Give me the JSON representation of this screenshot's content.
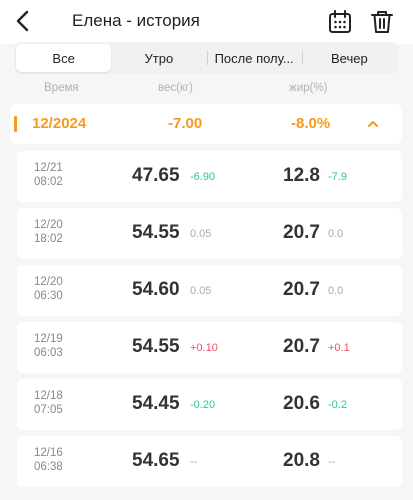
{
  "header": {
    "title": "Елена - история",
    "back_icon": "chevron-left-icon",
    "calendar_icon": "calendar-icon",
    "trash_icon": "trash-icon"
  },
  "tabs": [
    {
      "label": "Все",
      "active": true
    },
    {
      "label": "Утро",
      "active": false
    },
    {
      "label": "После полу...",
      "active": false
    },
    {
      "label": "Вечер",
      "active": false
    }
  ],
  "columns": {
    "time": "Время",
    "weight": "вес(кг)",
    "fat": "жир(%)"
  },
  "summary": {
    "month": "12/2024",
    "weight_change": "-7.00",
    "fat_change": "-8.0%",
    "accent_color": "#f39a1e",
    "toggle_icon": "chevron-up-icon"
  },
  "records": [
    {
      "date": "12/21",
      "time": "08:02",
      "weight": "47.65",
      "weight_delta": "-6.90",
      "weight_delta_tone": "green",
      "fat": "12.8",
      "fat_delta": "-7.9",
      "fat_delta_tone": "green"
    },
    {
      "date": "12/20",
      "time": "18:02",
      "weight": "54.55",
      "weight_delta": "0.05",
      "weight_delta_tone": "gray",
      "fat": "20.7",
      "fat_delta": "0.0",
      "fat_delta_tone": "gray"
    },
    {
      "date": "12/20",
      "time": "06:30",
      "weight": "54.60",
      "weight_delta": "0.05",
      "weight_delta_tone": "gray",
      "fat": "20.7",
      "fat_delta": "0.0",
      "fat_delta_tone": "gray"
    },
    {
      "date": "12/19",
      "time": "06:03",
      "weight": "54.55",
      "weight_delta": "+0.10",
      "weight_delta_tone": "red",
      "fat": "20.7",
      "fat_delta": "+0.1",
      "fat_delta_tone": "red"
    },
    {
      "date": "12/18",
      "time": "07:05",
      "weight": "54.45",
      "weight_delta": "-0.20",
      "weight_delta_tone": "green",
      "fat": "20.6",
      "fat_delta": "-0.2",
      "fat_delta_tone": "green"
    },
    {
      "date": "12/16",
      "time": "06:38",
      "weight": "54.65",
      "weight_delta": "--",
      "weight_delta_tone": "gray",
      "fat": "20.8",
      "fat_delta": "--",
      "fat_delta_tone": "gray"
    }
  ],
  "colors": {
    "decrease": "#2bc3a0",
    "increase": "#f0506e",
    "neutral": "#aaaaaa"
  }
}
